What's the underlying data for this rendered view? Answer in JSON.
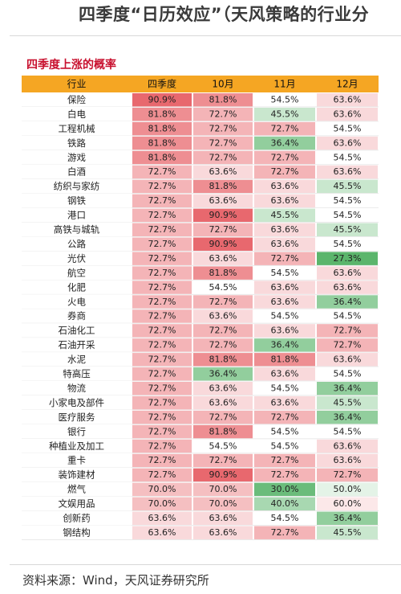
{
  "page": {
    "title": "四季度“日历效应”（天风策略的行业分",
    "source": "资料来源：Wind，天风证券研究所"
  },
  "colors": {
    "header_bg": "#f5a623",
    "high": "#e8686e",
    "mid": "#ffffff",
    "low": "#5bb56c",
    "subtitle": "#c8102e"
  },
  "chart_data": {
    "type": "table",
    "title": "四季度上涨的概率",
    "columns": [
      "行业",
      "四季度",
      "10月",
      "11月",
      "12月"
    ],
    "rows": [
      {
        "industry": "保险",
        "values": [
          "90.9%",
          "81.8%",
          "54.5%",
          "63.6%"
        ]
      },
      {
        "industry": "白电",
        "values": [
          "81.8%",
          "72.7%",
          "45.5%",
          "63.6%"
        ]
      },
      {
        "industry": "工程机械",
        "values": [
          "81.8%",
          "72.7%",
          "72.7%",
          "54.5%"
        ]
      },
      {
        "industry": "铁路",
        "values": [
          "81.8%",
          "72.7%",
          "36.4%",
          "63.6%"
        ]
      },
      {
        "industry": "游戏",
        "values": [
          "81.8%",
          "72.7%",
          "72.7%",
          "54.5%"
        ]
      },
      {
        "industry": "白酒",
        "values": [
          "72.7%",
          "63.6%",
          "72.7%",
          "63.6%"
        ]
      },
      {
        "industry": "纺织与家纺",
        "values": [
          "72.7%",
          "81.8%",
          "63.6%",
          "45.5%"
        ]
      },
      {
        "industry": "钢铁",
        "values": [
          "72.7%",
          "63.6%",
          "63.6%",
          "54.5%"
        ]
      },
      {
        "industry": "港口",
        "values": [
          "72.7%",
          "90.9%",
          "45.5%",
          "54.5%"
        ]
      },
      {
        "industry": "高铁与城轨",
        "values": [
          "72.7%",
          "72.7%",
          "63.6%",
          "45.5%"
        ]
      },
      {
        "industry": "公路",
        "values": [
          "72.7%",
          "90.9%",
          "63.6%",
          "54.5%"
        ]
      },
      {
        "industry": "光伏",
        "values": [
          "72.7%",
          "63.6%",
          "72.7%",
          "27.3%"
        ]
      },
      {
        "industry": "航空",
        "values": [
          "72.7%",
          "81.8%",
          "54.5%",
          "63.6%"
        ]
      },
      {
        "industry": "化肥",
        "values": [
          "72.7%",
          "54.5%",
          "63.6%",
          "63.6%"
        ]
      },
      {
        "industry": "火电",
        "values": [
          "72.7%",
          "72.7%",
          "63.6%",
          "36.4%"
        ]
      },
      {
        "industry": "券商",
        "values": [
          "72.7%",
          "63.6%",
          "54.5%",
          "54.5%"
        ]
      },
      {
        "industry": "石油化工",
        "values": [
          "72.7%",
          "72.7%",
          "63.6%",
          "72.7%"
        ]
      },
      {
        "industry": "石油开采",
        "values": [
          "72.7%",
          "72.7%",
          "36.4%",
          "72.7%"
        ]
      },
      {
        "industry": "水泥",
        "values": [
          "72.7%",
          "81.8%",
          "81.8%",
          "63.6%"
        ]
      },
      {
        "industry": "特高压",
        "values": [
          "72.7%",
          "36.4%",
          "63.6%",
          "54.5%"
        ]
      },
      {
        "industry": "物流",
        "values": [
          "72.7%",
          "63.6%",
          "54.5%",
          "36.4%"
        ]
      },
      {
        "industry": "小家电及部件",
        "values": [
          "72.7%",
          "63.6%",
          "63.6%",
          "45.5%"
        ]
      },
      {
        "industry": "医疗服务",
        "values": [
          "72.7%",
          "72.7%",
          "72.7%",
          "36.4%"
        ]
      },
      {
        "industry": "银行",
        "values": [
          "72.7%",
          "81.8%",
          "54.5%",
          "54.5%"
        ]
      },
      {
        "industry": "种植业及加工",
        "values": [
          "72.7%",
          "54.5%",
          "54.5%",
          "63.6%"
        ]
      },
      {
        "industry": "重卡",
        "values": [
          "72.7%",
          "72.7%",
          "72.7%",
          "63.6%"
        ]
      },
      {
        "industry": "装饰建材",
        "values": [
          "72.7%",
          "90.9%",
          "72.7%",
          "72.7%"
        ]
      },
      {
        "industry": "燃气",
        "values": [
          "70.0%",
          "70.0%",
          "30.0%",
          "50.0%"
        ]
      },
      {
        "industry": "文娱用品",
        "values": [
          "70.0%",
          "70.0%",
          "40.0%",
          "60.0%"
        ]
      },
      {
        "industry": "创新药",
        "values": [
          "63.6%",
          "63.6%",
          "54.5%",
          "36.4%"
        ]
      },
      {
        "industry": "钢结构",
        "values": [
          "63.6%",
          "63.6%",
          "72.7%",
          "45.5%"
        ]
      }
    ],
    "color_scale": {
      "min": 27.3,
      "mid": 54.5,
      "max": 90.9,
      "low_color": "green",
      "mid_color": "white",
      "high_color": "red"
    }
  }
}
